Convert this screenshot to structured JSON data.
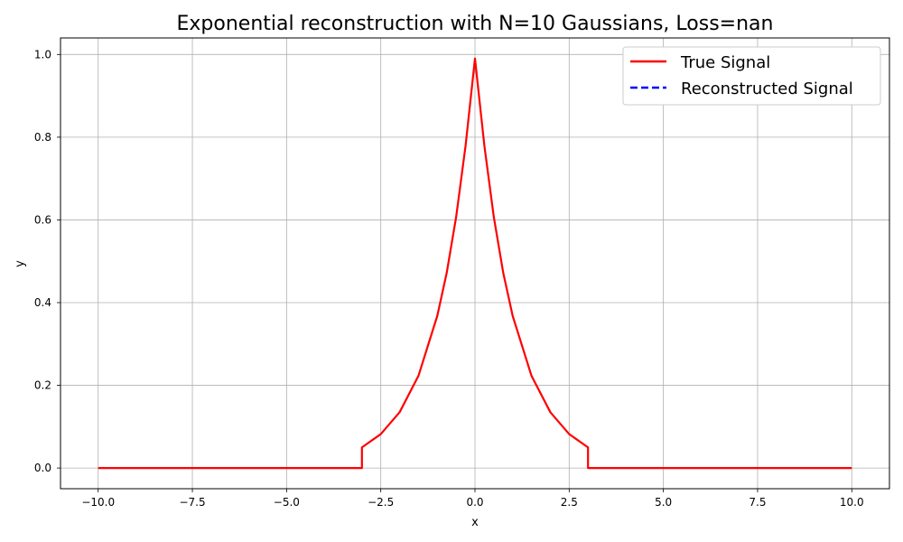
{
  "chart_data": {
    "type": "line",
    "title": "Exponential reconstruction with N=10 Gaussians, Loss=nan",
    "xlabel": "x",
    "ylabel": "y",
    "xlim": [
      -11,
      11
    ],
    "ylim": [
      -0.05,
      1.04
    ],
    "xticks": [
      -10,
      -7.5,
      -5,
      -2.5,
      0,
      2.5,
      5,
      7.5,
      10
    ],
    "xtick_labels": [
      "−10.0",
      "−7.5",
      "−5.0",
      "−2.5",
      "0.0",
      "2.5",
      "5.0",
      "7.5",
      "10.0"
    ],
    "yticks": [
      0,
      0.2,
      0.4,
      0.6,
      0.8,
      1.0
    ],
    "ytick_labels": [
      "0.0",
      "0.2",
      "0.4",
      "0.6",
      "0.8",
      "1.0"
    ],
    "grid": true,
    "legend_position": "top-right",
    "series": [
      {
        "name": "True Signal",
        "color": "#ff0000",
        "style": "solid",
        "x": [
          -10,
          -3.0,
          -3.0,
          -2.5,
          -2.0,
          -1.5,
          -1.0,
          -0.75,
          -0.5,
          -0.25,
          0,
          0.25,
          0.5,
          0.75,
          1.0,
          1.5,
          2.0,
          2.5,
          3.0,
          3.0,
          10
        ],
        "y": [
          0,
          0,
          0.05,
          0.082,
          0.135,
          0.223,
          0.368,
          0.472,
          0.607,
          0.779,
          0.99,
          0.779,
          0.607,
          0.472,
          0.368,
          0.223,
          0.135,
          0.082,
          0.05,
          0,
          0
        ]
      },
      {
        "name": "Reconstructed Signal",
        "color": "#0000ff",
        "style": "dashed",
        "x": [],
        "y": []
      }
    ]
  }
}
